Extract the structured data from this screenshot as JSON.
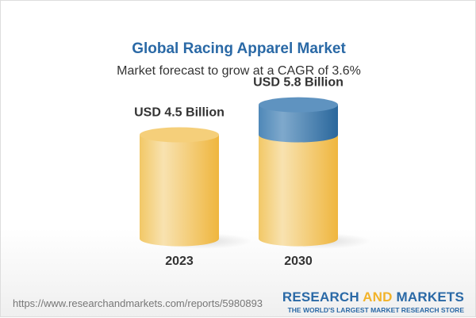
{
  "title": "Global Racing Apparel Market",
  "subtitle": "Market forecast to grow at a CAGR of 3.6%",
  "chart_data": {
    "type": "bar",
    "style": "3d-cylinder",
    "categories": [
      "2023",
      "2030"
    ],
    "values": [
      4.5,
      5.8
    ],
    "data_labels": [
      "USD 4.5 Billion",
      "USD 5.8 Billion"
    ],
    "unit": "USD Billion",
    "colors": {
      "base": "#f2c55c",
      "growth": "#3f7fb2"
    }
  },
  "footer": {
    "url": "https://www.researchandmarkets.com/reports/5980893",
    "logo_part1": "RESEARCH ",
    "logo_part2": "AND",
    "logo_part3": " MARKETS",
    "tagline": "THE WORLD'S LARGEST MARKET RESEARCH STORE"
  }
}
